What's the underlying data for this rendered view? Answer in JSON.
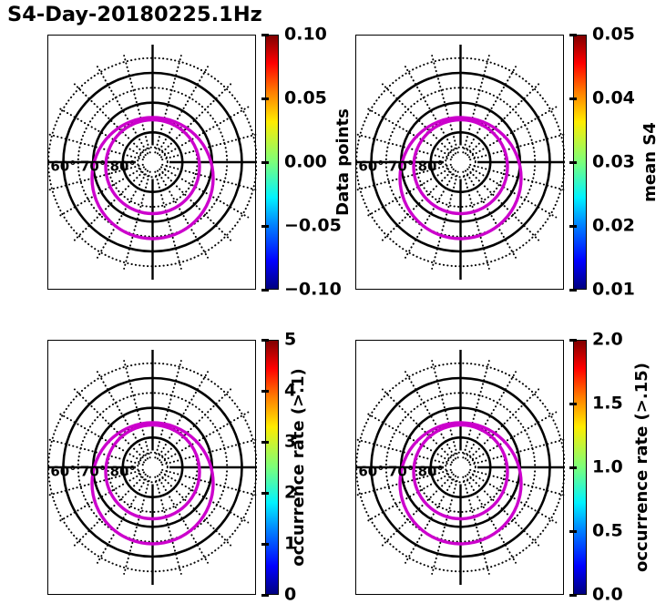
{
  "title": "S4-Day-20180225.1Hz",
  "colors": {
    "background": "#ffffff",
    "grid_black": "#000000",
    "contour_magenta": "#cc00cc",
    "colormap": "jet",
    "jet_top": "#800000",
    "jet_bottom": "#000080"
  },
  "polar": {
    "radial_labels": [
      "60°",
      "70°",
      "80°"
    ],
    "spoke_step_deg": 15
  },
  "panels": [
    {
      "id": "top-left",
      "colorbar": {
        "label": "Data points",
        "ticks": [
          "0.10",
          "0.05",
          "0.00",
          "−0.05",
          "−0.10"
        ]
      }
    },
    {
      "id": "top-right",
      "colorbar": {
        "label": "mean S4",
        "ticks": [
          "0.05",
          "0.04",
          "0.03",
          "0.02",
          "0.01"
        ]
      }
    },
    {
      "id": "bottom-left",
      "colorbar": {
        "label": "occurrence rate (>.1)",
        "ticks": [
          "5",
          "4",
          "3",
          "2",
          "1",
          "0"
        ]
      }
    },
    {
      "id": "bottom-right",
      "colorbar": {
        "label": "occurrence rate (>.15)",
        "ticks": [
          "2.0",
          "1.5",
          "1.0",
          "0.5",
          "0.0"
        ]
      }
    }
  ],
  "chart_data": [
    {
      "type": "scatter",
      "subtype": "polar sky plot",
      "panel": "top-left",
      "title": "S4-Day-20180225.1Hz",
      "series": [],
      "data_points_plotted": 0,
      "polar_grid": {
        "solid_rings_deg": [
          60,
          70,
          80
        ],
        "dotted_rings_deg": [
          55,
          65,
          75,
          85
        ],
        "radial_tick_labels": [
          "60°",
          "70°",
          "80°"
        ],
        "azimuth_spoke_step_deg": 15,
        "grid": true
      },
      "overlay": {
        "description": "two concentric magenta contour circles",
        "color": "#cc00cc"
      },
      "colorbar": {
        "label": "Data points",
        "colormap": "jet",
        "min": -0.1,
        "max": 0.1,
        "ticks": [
          0.1,
          0.05,
          0.0,
          -0.05,
          -0.1
        ],
        "position": "right"
      }
    },
    {
      "type": "scatter",
      "subtype": "polar sky plot",
      "panel": "top-right",
      "series": [],
      "data_points_plotted": 0,
      "polar_grid": {
        "solid_rings_deg": [
          60,
          70,
          80
        ],
        "dotted_rings_deg": [
          55,
          65,
          75,
          85
        ],
        "radial_tick_labels": [
          "60°",
          "70°",
          "80°"
        ],
        "azimuth_spoke_step_deg": 15,
        "grid": true
      },
      "overlay": {
        "description": "two concentric magenta contour circles",
        "color": "#cc00cc"
      },
      "colorbar": {
        "label": "mean S4",
        "colormap": "jet",
        "min": 0.01,
        "max": 0.05,
        "ticks": [
          0.05,
          0.04,
          0.03,
          0.02,
          0.01
        ],
        "position": "right"
      }
    },
    {
      "type": "scatter",
      "subtype": "polar sky plot",
      "panel": "bottom-left",
      "series": [],
      "data_points_plotted": 0,
      "polar_grid": {
        "solid_rings_deg": [
          60,
          70,
          80
        ],
        "dotted_rings_deg": [
          55,
          65,
          75,
          85
        ],
        "radial_tick_labels": [
          "60°",
          "70°",
          "80°"
        ],
        "azimuth_spoke_step_deg": 15,
        "grid": true
      },
      "overlay": {
        "description": "two concentric magenta contour circles",
        "color": "#cc00cc"
      },
      "colorbar": {
        "label": "occurrence rate (>.1)",
        "colormap": "jet",
        "min": 0,
        "max": 5,
        "ticks": [
          5,
          4,
          3,
          2,
          1,
          0
        ],
        "position": "right"
      }
    },
    {
      "type": "scatter",
      "subtype": "polar sky plot",
      "panel": "bottom-right",
      "series": [],
      "data_points_plotted": 0,
      "polar_grid": {
        "solid_rings_deg": [
          60,
          70,
          80
        ],
        "dotted_rings_deg": [
          55,
          65,
          75,
          85
        ],
        "radial_tick_labels": [
          "60°",
          "70°",
          "80°"
        ],
        "azimuth_spoke_step_deg": 15,
        "grid": true
      },
      "overlay": {
        "description": "two concentric magenta contour circles",
        "color": "#cc00cc"
      },
      "colorbar": {
        "label": "occurrence rate (>.15)",
        "colormap": "jet",
        "min": 0.0,
        "max": 2.0,
        "ticks": [
          2.0,
          1.5,
          1.0,
          0.5,
          0.0
        ],
        "position": "right"
      }
    }
  ]
}
